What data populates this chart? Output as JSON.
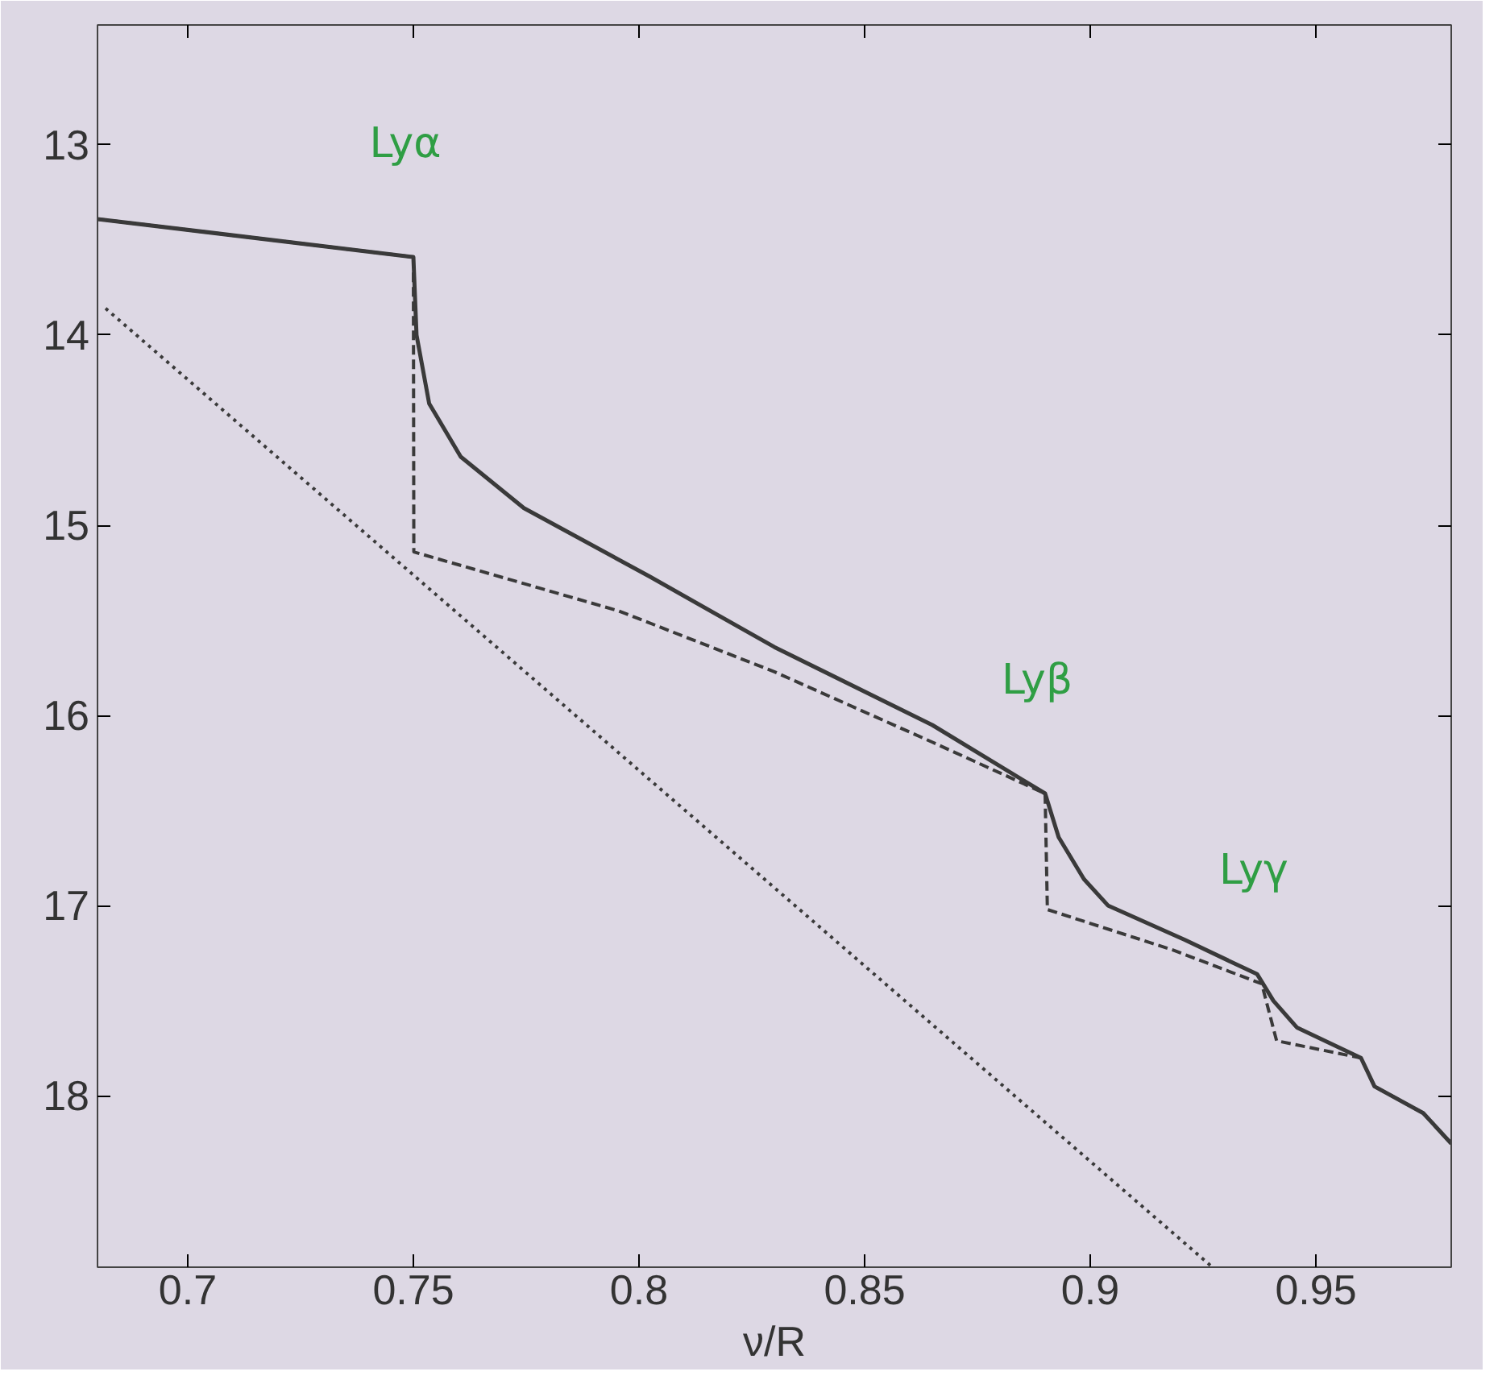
{
  "chart_data": {
    "type": "line",
    "xlabel": "ν/R",
    "xlim": [
      0.68,
      0.98
    ],
    "ylim": [
      18.9,
      12.37
    ],
    "xticks": [
      0.7,
      0.75,
      0.8,
      0.85,
      0.9,
      0.95
    ],
    "yticks": [
      13,
      14,
      15,
      16,
      17,
      18
    ],
    "grid": false,
    "marker": "none",
    "series": [
      {
        "color": "#3a3a3a",
        "line_style": "solid",
        "x": [
          0.68,
          0.75,
          0.7507,
          0.7535,
          0.7605,
          0.7745,
          0.8024,
          0.83,
          0.865,
          0.89,
          0.893,
          0.8986,
          0.904,
          0.921,
          0.937,
          0.9406,
          0.9458,
          0.96,
          0.963,
          0.9738,
          0.98
        ],
        "values": [
          13.39,
          13.59,
          14.0,
          14.36,
          14.64,
          14.91,
          15.27,
          15.64,
          16.05,
          16.41,
          16.64,
          16.86,
          17.0,
          17.18,
          17.36,
          17.5,
          17.64,
          17.8,
          17.95,
          18.09,
          18.25
        ]
      },
      {
        "color": "#3a3a3a",
        "line_style": "dashed",
        "x": [
          0.68,
          0.75,
          0.7501,
          0.7955,
          0.83,
          0.865,
          0.89,
          0.8905,
          0.918,
          0.938,
          0.9413,
          0.96,
          0.963,
          0.9738,
          0.98
        ],
        "values": [
          13.39,
          13.59,
          15.14,
          15.45,
          15.77,
          16.14,
          16.41,
          17.02,
          17.23,
          17.41,
          17.71,
          17.8,
          17.95,
          18.09,
          18.25
        ]
      },
      {
        "color": "#3a3a3a",
        "line_style": "dotted",
        "x": [
          0.6818,
          0.9266
        ],
        "values": [
          13.86,
          18.89
        ]
      }
    ],
    "annotations": [
      {
        "text": "Lyα",
        "x": 0.75,
        "y": 13.59
      },
      {
        "text": "Lyβ",
        "x": 0.89,
        "y": 16.41
      },
      {
        "text": "Lyγ",
        "x": 0.938,
        "y": 17.41
      }
    ]
  }
}
